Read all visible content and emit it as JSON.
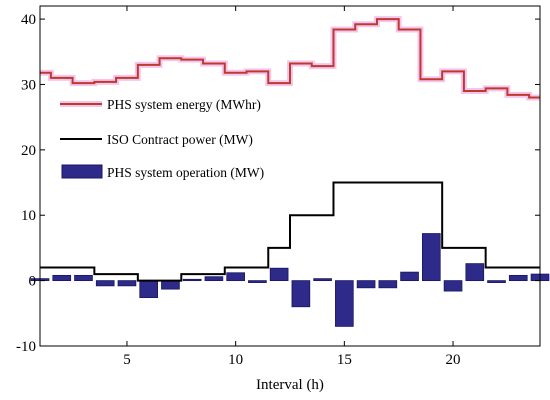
{
  "chart_data": {
    "type": "bar",
    "title": "",
    "xlabel": "Interval (h)",
    "ylabel": "",
    "xlim": [
      1,
      24
    ],
    "ylim": [
      -10,
      42
    ],
    "xticks": [
      5,
      10,
      15,
      20
    ],
    "yticks": [
      -10,
      0,
      10,
      20,
      30,
      40
    ],
    "grid": false,
    "legend_position": "left",
    "colors": {
      "energy": "#c0392b",
      "energy_halo": "#f3c6f0",
      "contract": "#000000",
      "operation_fill": "#2e2a8a",
      "operation_edge": "#1a1760"
    },
    "series": [
      {
        "name": "PHS system energy (MWhr)",
        "kind": "stairs",
        "x": [
          1,
          2,
          3,
          4,
          5,
          6,
          7,
          8,
          9,
          10,
          11,
          12,
          13,
          14,
          15,
          16,
          17,
          18,
          19,
          20,
          21,
          22,
          23,
          24
        ],
        "values": [
          31.8,
          31.0,
          30.2,
          30.4,
          31.0,
          33.0,
          34.0,
          33.8,
          33.2,
          31.8,
          32.0,
          30.2,
          33.2,
          32.8,
          38.4,
          39.2,
          40.0,
          38.4,
          30.8,
          32.0,
          29.0,
          29.4,
          28.4,
          28.0
        ]
      },
      {
        "name": "ISO Contract power (MW)",
        "kind": "stairs",
        "x": [
          1,
          2,
          3,
          4,
          5,
          6,
          7,
          8,
          9,
          10,
          11,
          12,
          13,
          14,
          15,
          16,
          17,
          18,
          19,
          20,
          21,
          22,
          23,
          24
        ],
        "values": [
          2,
          2,
          2,
          1,
          1,
          0,
          0,
          1,
          1,
          2,
          2,
          5,
          10,
          10,
          15,
          15,
          15,
          15,
          15,
          5,
          5,
          2,
          2,
          2
        ]
      },
      {
        "name": "PHS system operation (MW)",
        "kind": "bar",
        "x": [
          1,
          2,
          3,
          4,
          5,
          6,
          7,
          8,
          9,
          10,
          11,
          12,
          13,
          14,
          15,
          16,
          17,
          18,
          19,
          20,
          21,
          22,
          23,
          24
        ],
        "values": [
          0.3,
          0.8,
          0.8,
          -0.8,
          -0.8,
          -2.6,
          -1.3,
          0.2,
          0.6,
          1.2,
          -0.3,
          1.9,
          -4.0,
          0.3,
          -7.0,
          -1.1,
          -1.1,
          1.3,
          7.2,
          -1.6,
          2.6,
          -0.3,
          0.8,
          1.0
        ]
      }
    ]
  }
}
